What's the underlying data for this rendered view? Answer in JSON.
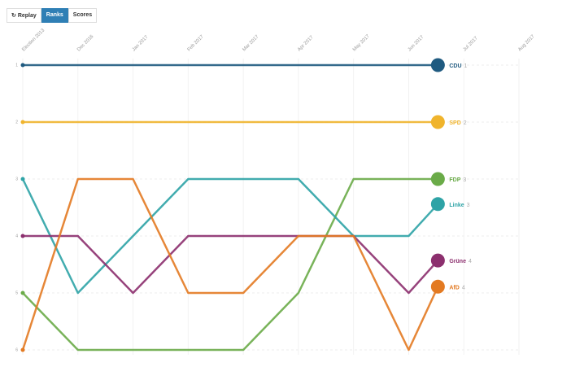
{
  "controls": {
    "replay": "Replay",
    "ranks": "Ranks",
    "scores": "Scores"
  },
  "chart_data": {
    "type": "bump",
    "x": [
      0,
      1,
      2,
      3,
      4,
      5,
      6,
      7,
      7.53
    ],
    "xlim": [
      0,
      9
    ],
    "xticks": [
      {
        "value": 0,
        "label": "Election 2013"
      },
      {
        "value": 1,
        "label": "Dec 2016"
      },
      {
        "value": 2,
        "label": "Jan 2017"
      },
      {
        "value": 3,
        "label": "Feb 2017"
      },
      {
        "value": 4,
        "label": "Mar 2017"
      },
      {
        "value": 5,
        "label": "Apr 2017"
      },
      {
        "value": 6,
        "label": "May 2017"
      },
      {
        "value": 7,
        "label": "Jun 2017"
      },
      {
        "value": 8,
        "label": "Jul 2017"
      },
      {
        "value": 9,
        "label": "Aug 2017"
      }
    ],
    "ylim": [
      1,
      6
    ],
    "yticks": [
      1,
      2,
      3,
      4,
      5,
      6
    ],
    "grid": true,
    "series": [
      {
        "name": "CDU",
        "rank_label": "1",
        "color": "#1f5a80",
        "values": [
          1,
          1,
          1,
          1,
          1,
          1,
          1,
          1,
          1
        ]
      },
      {
        "name": "SPD",
        "rank_label": "2",
        "color": "#f0b42c",
        "values": [
          2,
          2,
          2,
          2,
          2,
          2,
          2,
          2,
          2
        ]
      },
      {
        "name": "FDP",
        "rank_label": "3",
        "color": "#6aab48",
        "values": [
          5,
          6,
          6,
          6,
          6,
          5,
          3,
          3,
          3
        ]
      },
      {
        "name": "Linke",
        "rank_label": "3",
        "color": "#2ea3a6",
        "values": [
          3,
          5,
          4,
          3,
          3,
          3,
          4,
          4,
          3.44
        ]
      },
      {
        "name": "Grüne",
        "rank_label": "4",
        "color": "#8c2f6e",
        "values": [
          4,
          4,
          5,
          4,
          4,
          4,
          4,
          5,
          4.43
        ]
      },
      {
        "name": "AfD",
        "rank_label": "4",
        "color": "#e37a22",
        "values": [
          6,
          3,
          3,
          5,
          5,
          4,
          4,
          6,
          4.89
        ]
      }
    ]
  }
}
